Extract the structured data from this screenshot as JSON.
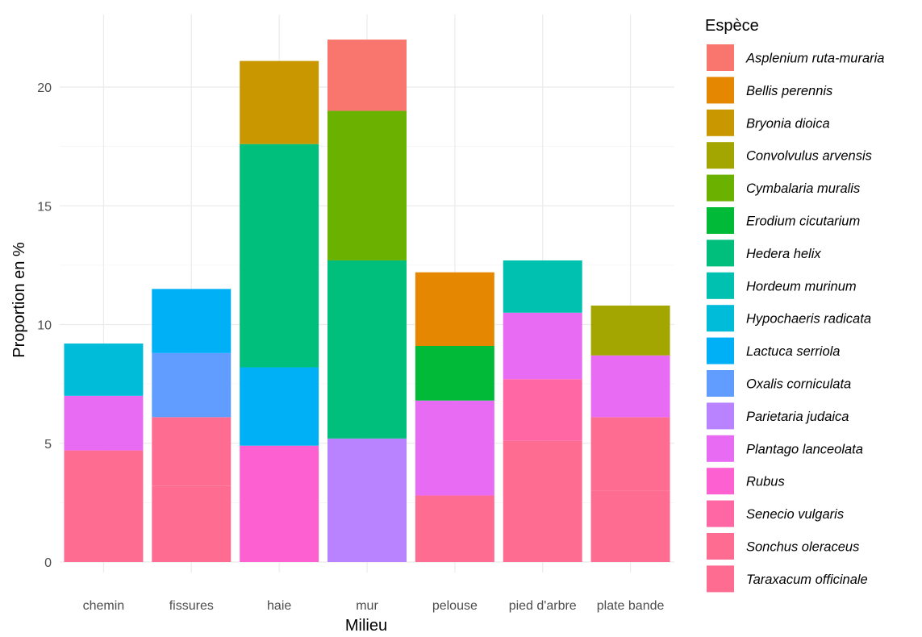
{
  "chart_data": {
    "type": "bar",
    "stacked": true,
    "xlabel": "Milieu",
    "ylabel": "Proportion en %",
    "ylim": [
      0,
      22.5
    ],
    "yticks": [
      0,
      5,
      10,
      15,
      20
    ],
    "grid": true,
    "legend_title": "Espèce",
    "legend_position": "right",
    "categories": [
      "chemin",
      "fissures",
      "haie",
      "mur",
      "pelouse",
      "pied d'arbre",
      "plate bande"
    ],
    "series": [
      {
        "name": "Asplenium ruta-muraria",
        "color": "#F8766D",
        "values": [
          0,
          0,
          0,
          3.0,
          0,
          0,
          0
        ]
      },
      {
        "name": "Bellis perennis",
        "color": "#E58700",
        "values": [
          0,
          0,
          0,
          0,
          3.1,
          0,
          0
        ]
      },
      {
        "name": "Bryonia dioica",
        "color": "#C99800",
        "values": [
          0,
          0,
          3.5,
          0,
          0,
          0,
          0
        ]
      },
      {
        "name": "Convolvulus arvensis",
        "color": "#A3A500",
        "values": [
          0,
          0,
          0,
          0,
          0,
          0,
          2.1
        ]
      },
      {
        "name": "Cymbalaria muralis",
        "color": "#6BB100",
        "values": [
          0,
          0,
          0,
          6.3,
          0,
          0,
          0
        ]
      },
      {
        "name": "Erodium cicutarium",
        "color": "#00BA38",
        "values": [
          0,
          0,
          0,
          0,
          2.3,
          0,
          0
        ]
      },
      {
        "name": "Hedera helix",
        "color": "#00BF7D",
        "values": [
          0,
          0,
          9.4,
          7.5,
          0,
          0,
          0
        ]
      },
      {
        "name": "Hordeum murinum",
        "color": "#00C0AF",
        "values": [
          0,
          0,
          0,
          0,
          0,
          2.2,
          0
        ]
      },
      {
        "name": "Hypochaeris radicata",
        "color": "#00BCD8",
        "values": [
          2.2,
          0,
          0,
          0,
          0,
          0,
          0
        ]
      },
      {
        "name": "Lactuca serriola",
        "color": "#00B0F6",
        "values": [
          0,
          2.7,
          3.3,
          0,
          0,
          0,
          0
        ]
      },
      {
        "name": "Oxalis corniculata",
        "color": "#619CFF",
        "values": [
          0,
          2.7,
          0,
          0,
          0,
          0,
          0
        ]
      },
      {
        "name": "Parietaria judaica",
        "color": "#B983FF",
        "values": [
          0,
          0,
          0,
          5.2,
          0,
          0,
          0
        ]
      },
      {
        "name": "Plantago lanceolata",
        "color": "#E76BF3",
        "values": [
          2.3,
          0,
          0,
          0,
          4.0,
          2.8,
          2.6
        ]
      },
      {
        "name": "Rubus",
        "color": "#FD61D1",
        "values": [
          0,
          0,
          4.9,
          0,
          0,
          0,
          0
        ]
      },
      {
        "name": "Senecio vulgaris",
        "color": "#FF67A4",
        "values": [
          0,
          0,
          0,
          0,
          0,
          2.6,
          0
        ]
      },
      {
        "name": "Sonchus oleraceus",
        "color": "#FF6C91",
        "values": [
          2.0,
          2.9,
          0,
          0,
          0,
          0,
          3.1
        ]
      },
      {
        "name": "Taraxacum officinale",
        "color": "#FF6C91",
        "values": [
          2.7,
          3.2,
          0,
          0,
          2.8,
          5.1,
          3.0
        ]
      }
    ]
  }
}
